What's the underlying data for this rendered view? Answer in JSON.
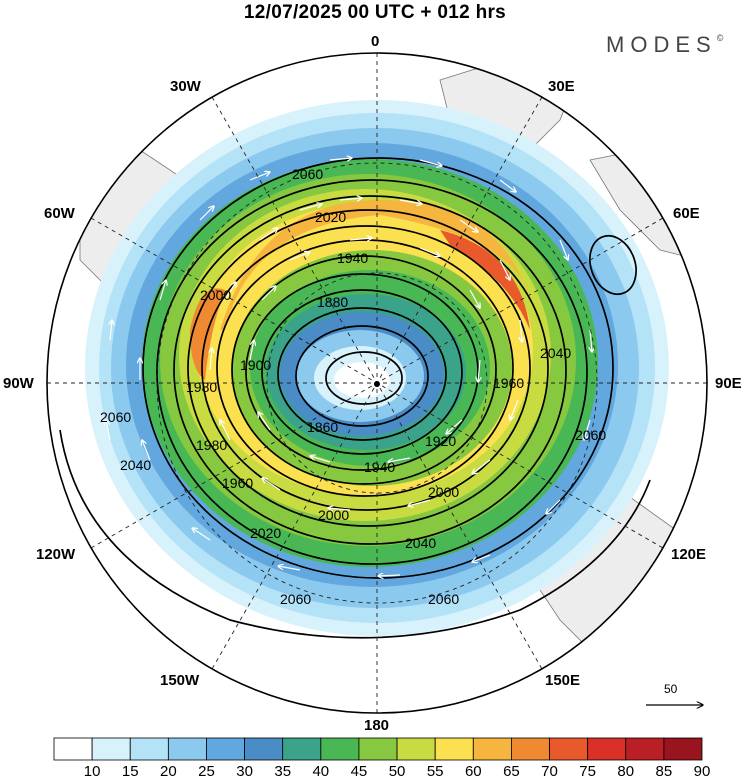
{
  "title": "12/07/2025  00 UTC  + 012 hrs",
  "brand": {
    "name": "MODES",
    "mark": "©"
  },
  "longitude_labels": [
    "0",
    "30E",
    "60E",
    "90E",
    "120E",
    "150E",
    "180",
    "150W",
    "120W",
    "90W",
    "60W",
    "30W"
  ],
  "contour_labels": [
    "2060",
    "2040",
    "2020",
    "2000",
    "1980",
    "1960",
    "1940",
    "1920",
    "1900",
    "1880",
    "1860"
  ],
  "reference_vector": {
    "label": "50"
  },
  "colorbar": {
    "ticks": [
      "10",
      "15",
      "20",
      "25",
      "30",
      "35",
      "40",
      "45",
      "50",
      "55",
      "60",
      "65",
      "70",
      "75",
      "80",
      "85",
      "90"
    ],
    "colors": [
      "#ffffff",
      "#d8f2fc",
      "#b4e2f7",
      "#8cc9ee",
      "#62a8de",
      "#4a8cc6",
      "#3aa38a",
      "#49b854",
      "#86c83f",
      "#c8dc42",
      "#fbe04f",
      "#f6b53f",
      "#f08a32",
      "#e85a2b",
      "#d93027",
      "#bb1f26",
      "#98141f"
    ]
  }
}
